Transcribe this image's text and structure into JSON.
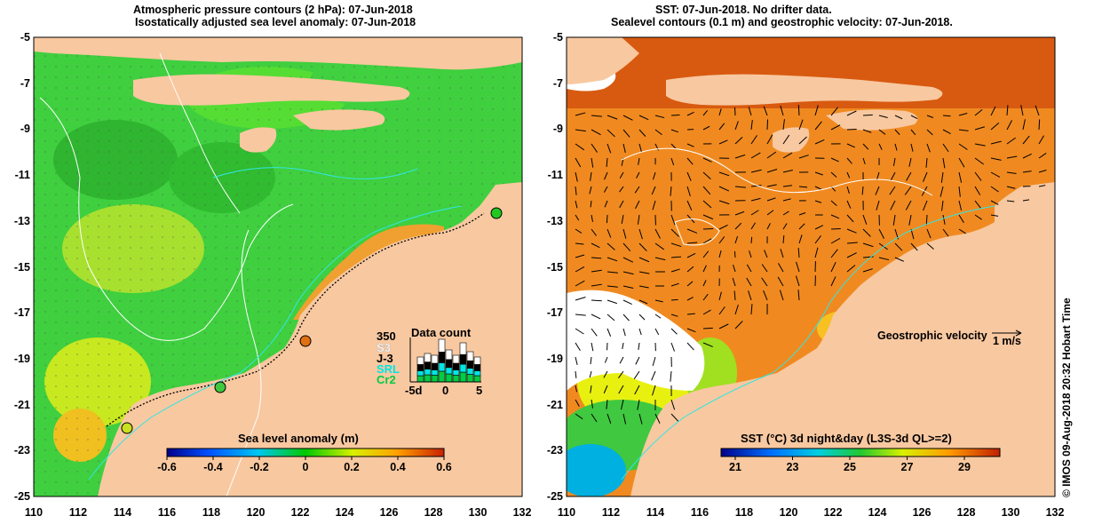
{
  "left_panel": {
    "title_line1": "Atmospheric pressure contours (2 hPa): 07-Jun-2018",
    "title_line2": "Isostatically adjusted sea level anomaly: 07-Jun-2018",
    "colorbar": {
      "label": "Sea level anomaly (m)",
      "ticks": [
        "-0.6",
        "-0.4",
        "-0.2",
        "0",
        "0.2",
        "0.4",
        "0.6"
      ]
    },
    "data_count": {
      "title": "Data count",
      "max_label": "350",
      "sat_labels": [
        "S3",
        "J-3",
        "SRL",
        "Cr2"
      ],
      "sat_colors": [
        "#ffffff",
        "#000000",
        "#00e5e5",
        "#00cc44"
      ],
      "x_ticks": [
        "-5d",
        "0",
        "5"
      ]
    }
  },
  "right_panel": {
    "title_line1": "SST: 07-Jun-2018. No drifter data.",
    "title_line2": "Sealevel contours (0.1 m) and geostrophic velocity: 07-Jun-2018.",
    "colorbar": {
      "label": "SST (°C) 3d night&day (L3S-3d QL>=2)",
      "ticks": [
        "21",
        "23",
        "25",
        "27",
        "29"
      ]
    },
    "velocity_legend": {
      "label": "Geostrophic velocity",
      "scale": "1 m/s"
    },
    "credit": "© IMOS 09-Aug-2018 20:32 Hobart Time"
  },
  "axes": {
    "lat_labels": [
      "-5",
      "-7",
      "-9",
      "-11",
      "-13",
      "-15",
      "-17",
      "-19",
      "-21",
      "-23",
      "-25"
    ],
    "lon_labels": [
      "110",
      "112",
      "114",
      "116",
      "118",
      "120",
      "122",
      "124",
      "126",
      "128",
      "130",
      "132"
    ]
  },
  "colors": {
    "land": "#f8c8a0",
    "ocean_green": "#3fcf3f",
    "ocean_orange": "#f08a20",
    "coast_red": "#e65c00"
  },
  "tide_gauges": [
    {
      "lon": 130.9,
      "lat": -12.5
    },
    {
      "lon": 122.2,
      "lat": -18.0
    },
    {
      "lon": 118.4,
      "lat": -20.3
    },
    {
      "lon": 114.2,
      "lat": -22.0
    }
  ]
}
